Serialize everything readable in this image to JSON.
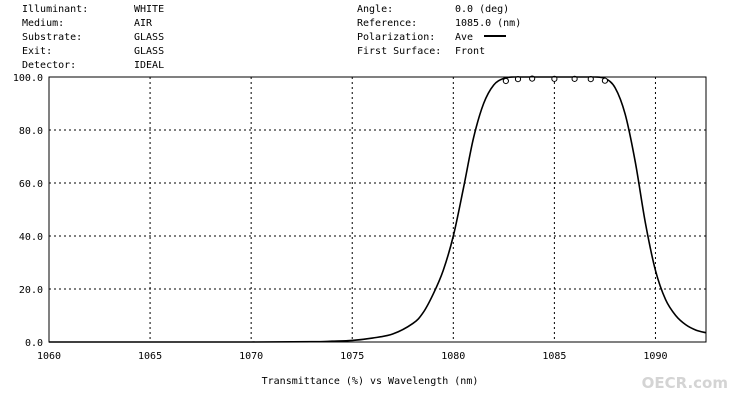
{
  "header": {
    "left": [
      {
        "label": "Illuminant:",
        "value": "WHITE"
      },
      {
        "label": "Medium:",
        "value": "AIR"
      },
      {
        "label": "Substrate:",
        "value": "GLASS"
      },
      {
        "label": "Exit:",
        "value": "GLASS"
      },
      {
        "label": "Detector:",
        "value": "IDEAL"
      }
    ],
    "right": [
      {
        "label": "Angle:",
        "value": "0.0 (deg)"
      },
      {
        "label": "Reference:",
        "value": "1085.0 (nm)"
      },
      {
        "label": "Polarization:",
        "value": "Ave"
      },
      {
        "label": "First Surface:",
        "value": "Front"
      }
    ]
  },
  "watermark": "OECR.com",
  "chart_data": {
    "type": "line",
    "title": "",
    "xlabel": "Transmittance (%)  vs  Wavelength (nm)",
    "ylabel": "",
    "xlim": [
      1060,
      1092.5
    ],
    "ylim": [
      0,
      100
    ],
    "x_ticks": [
      1060,
      1065,
      1070,
      1075,
      1080,
      1085,
      1090
    ],
    "x_tick_labels": [
      "1060",
      "1065",
      "1070",
      "1075",
      "1080",
      "1085",
      "1090"
    ],
    "y_ticks": [
      0,
      20,
      40,
      60,
      80,
      100
    ],
    "y_tick_labels": [
      "0.0",
      "20.0",
      "40.0",
      "60.0",
      "80.0",
      "100.0"
    ],
    "grid": true,
    "legend": "Polarization: Ave (solid line)",
    "series": [
      {
        "name": "Ave",
        "x": [
          1060,
          1065,
          1070,
          1073,
          1074,
          1075,
          1076,
          1077,
          1078,
          1078.5,
          1079,
          1079.5,
          1080,
          1080.5,
          1081,
          1081.5,
          1082,
          1082.5,
          1083,
          1083.5,
          1084,
          1085,
          1086,
          1087,
          1087.5,
          1088,
          1088.5,
          1089,
          1089.5,
          1090,
          1090.5,
          1091,
          1091.5,
          1092,
          1092.5
        ],
        "y": [
          0,
          0,
          0,
          0.1,
          0.3,
          0.6,
          1.5,
          3,
          7,
          11,
          18,
          27,
          40,
          58,
          77,
          90,
          97,
          99.5,
          100,
          100,
          100,
          100,
          100,
          100,
          99.5,
          96,
          86,
          68,
          45,
          27,
          16,
          10,
          6.5,
          4.5,
          3.5
        ]
      },
      {
        "name": "",
        "style": "open-circle markers",
        "x": [
          1082.6,
          1083.2,
          1083.9,
          1085.0,
          1086.0,
          1086.8,
          1087.5
        ],
        "y": [
          98.5,
          99.2,
          99.4,
          99.3,
          99.3,
          99.2,
          98.6
        ]
      }
    ],
    "colors": {
      "line": "#000000",
      "grid": "#000000",
      "background": "#ffffff"
    }
  }
}
